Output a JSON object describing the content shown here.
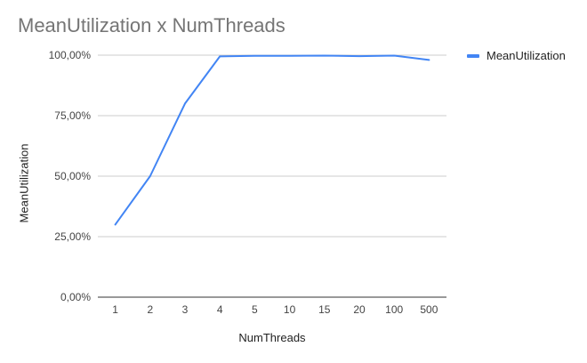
{
  "chart_data": {
    "type": "line",
    "title": "MeanUtilization x NumThreads",
    "xlabel": "NumThreads",
    "ylabel": "MeanUtilization",
    "categories": [
      "1",
      "2",
      "3",
      "4",
      "5",
      "10",
      "15",
      "20",
      "100",
      "500"
    ],
    "series": [
      {
        "name": "MeanUtilization",
        "color": "#4285F4",
        "values": [
          0.3,
          0.5,
          0.8,
          0.995,
          0.997,
          0.997,
          0.998,
          0.996,
          0.998,
          0.98
        ]
      }
    ],
    "ylim": [
      0,
      1
    ],
    "yticks": [
      0,
      0.25,
      0.5,
      0.75,
      1
    ],
    "ytick_labels": [
      "0,00%",
      "25,00%",
      "50,00%",
      "75,00%",
      "100,00%"
    ],
    "grid": true,
    "legend_position": "right"
  }
}
